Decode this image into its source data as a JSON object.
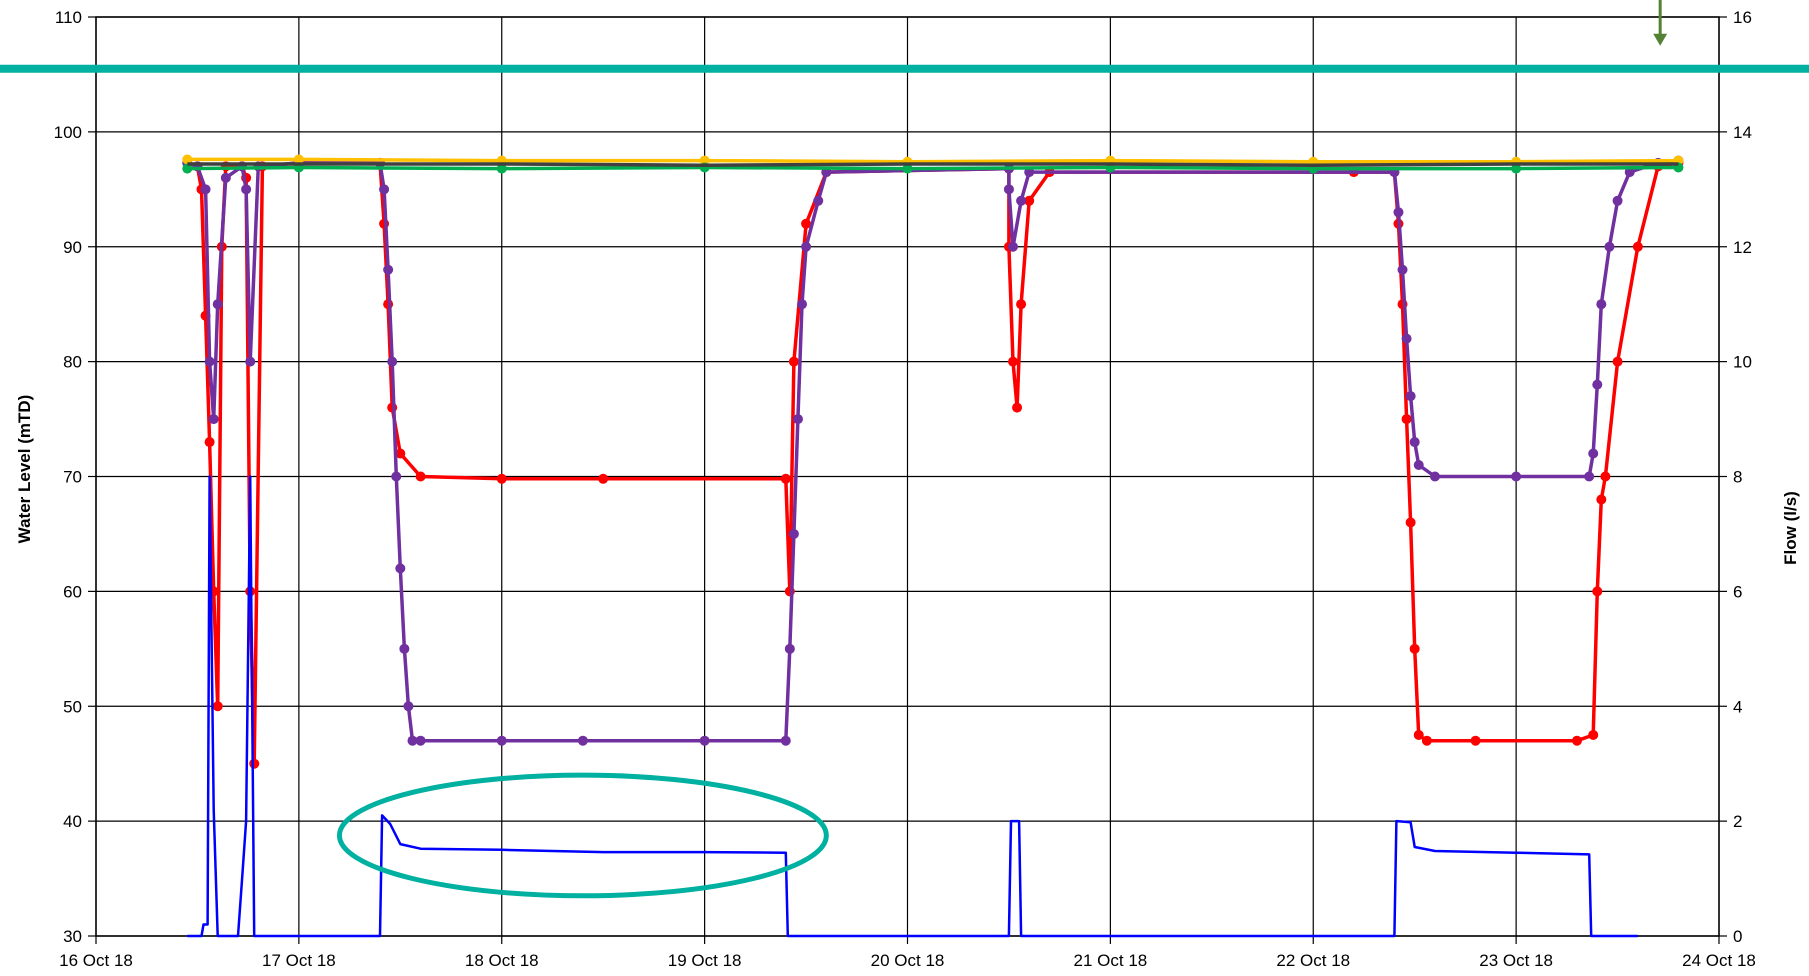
{
  "chart_data": {
    "type": "line",
    "title": "",
    "ylabel": "Water Level (mTD)",
    "y2label": "Flow (l/s)",
    "ylim": [
      30,
      110
    ],
    "y2lim": [
      0,
      16
    ],
    "xlim": [
      "16 Oct 18",
      "24 Oct 18"
    ],
    "grid": true,
    "y_ticks": [
      "30",
      "40",
      "50",
      "60",
      "70",
      "80",
      "90",
      "100",
      "110"
    ],
    "y2_ticks": [
      "0",
      "2",
      "4",
      "6",
      "8",
      "10",
      "12",
      "14",
      "16"
    ],
    "x_ticks": [
      "16 Oct 18",
      "17 Oct 18",
      "18 Oct 18",
      "19 Oct 18",
      "20 Oct 18",
      "21 Oct 18",
      "22 Oct 18",
      "23 Oct 18",
      "24 Oct 18"
    ],
    "series": [
      {
        "color": "#ff0000",
        "axis": "left",
        "markers": true,
        "points": [
          [
            0.45,
            97.3
          ],
          [
            0.5,
            97
          ],
          [
            0.52,
            95
          ],
          [
            0.54,
            84
          ],
          [
            0.56,
            73
          ],
          [
            0.58,
            60
          ],
          [
            0.6,
            50
          ],
          [
            0.62,
            90
          ],
          [
            0.64,
            97
          ],
          [
            0.72,
            97
          ],
          [
            0.74,
            96
          ],
          [
            0.76,
            60
          ],
          [
            0.78,
            45
          ],
          [
            0.82,
            97
          ],
          [
            1.0,
            97.3
          ],
          [
            1.4,
            97.3
          ],
          [
            1.42,
            92
          ],
          [
            1.44,
            85
          ],
          [
            1.46,
            76
          ],
          [
            1.5,
            72
          ],
          [
            1.6,
            70
          ],
          [
            2.0,
            69.8
          ],
          [
            2.5,
            69.8
          ],
          [
            3.4,
            69.8
          ],
          [
            3.42,
            60
          ],
          [
            3.44,
            80
          ],
          [
            3.5,
            92
          ],
          [
            3.6,
            96.5
          ],
          [
            4.5,
            96.8
          ],
          [
            4.5,
            90
          ],
          [
            4.52,
            80
          ],
          [
            4.54,
            76
          ],
          [
            4.56,
            85
          ],
          [
            4.6,
            94
          ],
          [
            4.7,
            96.5
          ],
          [
            6.2,
            96.5
          ],
          [
            6.4,
            96.5
          ],
          [
            6.42,
            92
          ],
          [
            6.44,
            85
          ],
          [
            6.46,
            75
          ],
          [
            6.48,
            66
          ],
          [
            6.5,
            55
          ],
          [
            6.52,
            47.5
          ],
          [
            6.56,
            47
          ],
          [
            6.8,
            47
          ],
          [
            7.3,
            47
          ],
          [
            7.38,
            47.5
          ],
          [
            7.4,
            60
          ],
          [
            7.42,
            68
          ],
          [
            7.44,
            70
          ],
          [
            7.5,
            80
          ],
          [
            7.6,
            90
          ],
          [
            7.7,
            97
          ],
          [
            7.8,
            97.3
          ]
        ]
      },
      {
        "color": "#7030a0",
        "axis": "left",
        "markers": true,
        "points": [
          [
            0.45,
            97.3
          ],
          [
            0.5,
            97
          ],
          [
            0.54,
            95
          ],
          [
            0.56,
            80
          ],
          [
            0.58,
            75
          ],
          [
            0.6,
            85
          ],
          [
            0.64,
            96
          ],
          [
            0.72,
            97
          ],
          [
            0.74,
            95
          ],
          [
            0.76,
            80
          ],
          [
            0.8,
            97
          ],
          [
            1.0,
            97.3
          ],
          [
            1.4,
            97.3
          ],
          [
            1.42,
            95
          ],
          [
            1.44,
            88
          ],
          [
            1.46,
            80
          ],
          [
            1.48,
            70
          ],
          [
            1.5,
            62
          ],
          [
            1.52,
            55
          ],
          [
            1.54,
            50
          ],
          [
            1.56,
            47
          ],
          [
            1.6,
            47
          ],
          [
            2.0,
            47
          ],
          [
            2.4,
            47
          ],
          [
            3.0,
            47
          ],
          [
            3.4,
            47
          ],
          [
            3.42,
            55
          ],
          [
            3.44,
            65
          ],
          [
            3.46,
            75
          ],
          [
            3.48,
            85
          ],
          [
            3.5,
            90
          ],
          [
            3.56,
            94
          ],
          [
            3.6,
            96.5
          ],
          [
            4.5,
            96.8
          ],
          [
            4.5,
            95
          ],
          [
            4.52,
            90
          ],
          [
            4.56,
            94
          ],
          [
            4.6,
            96.5
          ],
          [
            6.4,
            96.5
          ],
          [
            6.42,
            93
          ],
          [
            6.44,
            88
          ],
          [
            6.46,
            82
          ],
          [
            6.48,
            77
          ],
          [
            6.5,
            73
          ],
          [
            6.52,
            71
          ],
          [
            6.6,
            70
          ],
          [
            7.0,
            70
          ],
          [
            7.36,
            70
          ],
          [
            7.38,
            72
          ],
          [
            7.4,
            78
          ],
          [
            7.42,
            85
          ],
          [
            7.46,
            90
          ],
          [
            7.5,
            94
          ],
          [
            7.56,
            96.5
          ],
          [
            7.7,
            97.3
          ],
          [
            7.8,
            97.5
          ]
        ]
      },
      {
        "color": "#ffc000",
        "axis": "left",
        "markers": true,
        "points": [
          [
            0.45,
            97.6
          ],
          [
            1.0,
            97.6
          ],
          [
            2.0,
            97.5
          ],
          [
            3.0,
            97.5
          ],
          [
            4.0,
            97.4
          ],
          [
            5.0,
            97.5
          ],
          [
            6.0,
            97.4
          ],
          [
            7.0,
            97.4
          ],
          [
            7.8,
            97.5
          ]
        ]
      },
      {
        "color": "#00b050",
        "axis": "left",
        "markers": true,
        "points": [
          [
            0.45,
            96.8
          ],
          [
            1.0,
            96.9
          ],
          [
            2.0,
            96.8
          ],
          [
            3.0,
            96.9
          ],
          [
            4.0,
            96.8
          ],
          [
            5.0,
            96.9
          ],
          [
            6.0,
            96.8
          ],
          [
            7.0,
            96.8
          ],
          [
            7.8,
            96.9
          ]
        ]
      },
      {
        "color": "#404040",
        "axis": "left",
        "markers": false,
        "points": [
          [
            0.45,
            97.2
          ],
          [
            1.0,
            97.2
          ],
          [
            2.0,
            97.2
          ],
          [
            3.0,
            97.1
          ],
          [
            4.0,
            97.2
          ],
          [
            5.0,
            97.2
          ],
          [
            6.0,
            97.1
          ],
          [
            7.0,
            97.2
          ],
          [
            7.8,
            97.2
          ]
        ]
      },
      {
        "color": "#0000ff",
        "axis": "right",
        "markers": false,
        "points": [
          [
            0.45,
            0
          ],
          [
            0.52,
            0
          ],
          [
            0.53,
            0.2
          ],
          [
            0.55,
            0.2
          ],
          [
            0.56,
            8
          ],
          [
            0.58,
            2.2
          ],
          [
            0.6,
            0
          ],
          [
            0.7,
            0
          ],
          [
            0.72,
            1
          ],
          [
            0.74,
            2
          ],
          [
            0.76,
            8
          ],
          [
            0.78,
            0
          ],
          [
            1.0,
            0
          ],
          [
            1.4,
            0
          ],
          [
            1.41,
            2.1
          ],
          [
            1.45,
            1.95
          ],
          [
            1.5,
            1.6
          ],
          [
            1.6,
            1.52
          ],
          [
            2.0,
            1.5
          ],
          [
            2.5,
            1.46
          ],
          [
            3.0,
            1.46
          ],
          [
            3.4,
            1.45
          ],
          [
            3.41,
            0
          ],
          [
            4.5,
            0
          ],
          [
            4.51,
            2.0
          ],
          [
            4.55,
            2.0
          ],
          [
            4.56,
            0
          ],
          [
            6.4,
            0
          ],
          [
            6.41,
            2.0
          ],
          [
            6.48,
            1.98
          ],
          [
            6.5,
            1.55
          ],
          [
            6.6,
            1.48
          ],
          [
            7.0,
            1.45
          ],
          [
            7.36,
            1.42
          ],
          [
            7.37,
            0
          ],
          [
            7.6,
            0
          ]
        ]
      }
    ],
    "annotations": [
      {
        "type": "horizontal-line",
        "color": "#00b0a0",
        "y2": 15.1
      },
      {
        "type": "ellipse",
        "color": "#00b0a0",
        "x_from": 1.2,
        "x_to": 3.6,
        "y_from": 33.5,
        "y_to": 44
      },
      {
        "type": "arrow",
        "color": "#548235",
        "x": 7.71,
        "y2_from": 16.5,
        "y2_to": 15.5
      }
    ]
  }
}
